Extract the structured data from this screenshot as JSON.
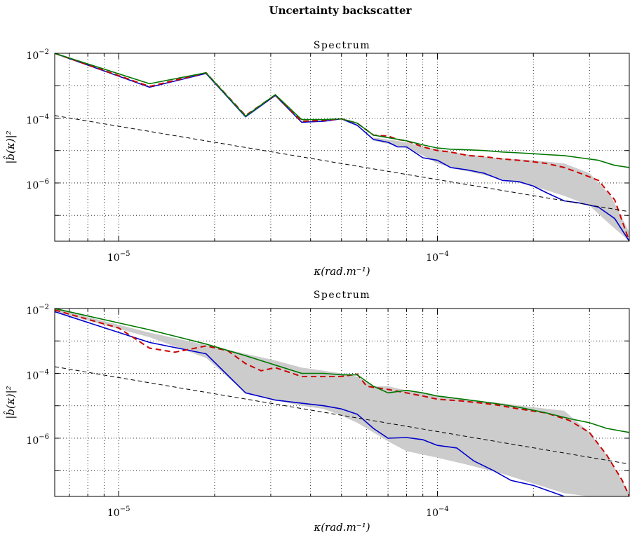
{
  "suptitle": "Uncertainty backscatter",
  "chart_data": [
    {
      "type": "line",
      "title": "Spectrum",
      "xlabel": "κ(rad.m⁻¹)",
      "ylabel": "|b̂(κ)|²",
      "xscale": "log",
      "yscale": "log",
      "xlim": [
        6.3e-06,
        0.0004
      ],
      "ylim": [
        1.6e-08,
        0.01
      ],
      "grid": true,
      "x_tick_labels": [
        {
          "base": "10",
          "exp": "−5"
        },
        {
          "base": "10",
          "exp": "−4"
        }
      ],
      "y_tick_labels": [
        {
          "base": "10",
          "exp": "−2"
        },
        {
          "base": "10",
          "exp": "−4"
        },
        {
          "base": "10",
          "exp": "−6"
        }
      ],
      "band": {
        "color": "#cccccc",
        "x": [
          6.3e-05,
          7e-05,
          8e-05,
          9e-05,
          0.0001,
          0.00012,
          0.00015,
          0.0002,
          0.00025,
          0.0003,
          0.00035,
          0.0004
        ],
        "upper": [
          2.5e-05,
          2.2e-05,
          1.8e-05,
          1.3e-05,
          1.1e-05,
          8e-06,
          6e-06,
          5e-06,
          4e-06,
          2e-06,
          4e-07,
          3e-08
        ],
        "lower": [
          2e-05,
          1.6e-05,
          1.2e-05,
          7e-06,
          4e-06,
          2.5e-06,
          1.5e-06,
          8e-07,
          4e-07,
          2e-07,
          5e-08,
          1.6e-08
        ]
      },
      "series": [
        {
          "color": "#0000cc",
          "style": "solid",
          "x": [
            6.3e-06,
            1.25e-05,
            1.88e-05,
            2.5e-05,
            3.1e-05,
            3.75e-05,
            4.4e-05,
            5e-05,
            5.6e-05,
            6.3e-05,
            7e-05,
            7.5e-05,
            8e-05,
            9e-05,
            0.0001,
            0.00011,
            0.000125,
            0.00014,
            0.00016,
            0.00018,
            0.0002,
            0.00022,
            0.00025,
            0.00028,
            0.00032,
            0.00036,
            0.0004
          ],
          "y": [
            0.01,
            0.0009,
            0.0024,
            0.00011,
            0.0005,
            7.5e-05,
            8e-05,
            9.5e-05,
            6e-05,
            2.2e-05,
            1.8e-05,
            1.3e-05,
            1.3e-05,
            6e-06,
            5e-06,
            3e-06,
            2.5e-06,
            2e-06,
            1.2e-06,
            1.1e-06,
            8e-07,
            5e-07,
            2.8e-07,
            2.4e-07,
            1.8e-07,
            8e-08,
            1.6e-08
          ]
        },
        {
          "color": "#cc0000",
          "style": "dashed",
          "x": [
            6.3e-06,
            1.25e-05,
            1.88e-05,
            2.5e-05,
            3.1e-05,
            3.75e-05,
            4.4e-05,
            5e-05,
            5.6e-05,
            6.3e-05,
            7e-05,
            7.5e-05,
            8e-05,
            9e-05,
            0.0001,
            0.00011,
            0.000125,
            0.00014,
            0.00016,
            0.00018,
            0.0002,
            0.00022,
            0.00025,
            0.00028,
            0.00032,
            0.00036,
            0.0004
          ],
          "y": [
            0.01,
            0.00095,
            0.0025,
            0.00012,
            0.00052,
            8e-05,
            8.5e-05,
            9.5e-05,
            7e-05,
            3e-05,
            2.8e-05,
            2.2e-05,
            2e-05,
            1.3e-05,
            1e-05,
            9e-06,
            7e-06,
            6.5e-06,
            5.5e-06,
            5e-06,
            4.5e-06,
            4e-06,
            3e-06,
            2e-06,
            1.2e-06,
            3e-07,
            1.6e-08
          ]
        },
        {
          "color": "#007700",
          "style": "solid",
          "x": [
            6.3e-06,
            1.25e-05,
            1.88e-05,
            2.5e-05,
            3.1e-05,
            3.75e-05,
            4.4e-05,
            5e-05,
            5.6e-05,
            6.3e-05,
            7e-05,
            8e-05,
            9e-05,
            0.0001,
            0.00011,
            0.000125,
            0.00014,
            0.00016,
            0.00018,
            0.0002,
            0.00022,
            0.00025,
            0.00028,
            0.00032,
            0.00036,
            0.0004
          ],
          "y": [
            0.01,
            0.00115,
            0.0025,
            0.000115,
            0.00053,
            9e-05,
            9e-05,
            9.5e-05,
            7e-05,
            3e-05,
            2.5e-05,
            2e-05,
            1.5e-05,
            1.2e-05,
            1.1e-05,
            1.05e-05,
            1e-05,
            9e-06,
            8.5e-06,
            8e-06,
            7.5e-06,
            7e-06,
            6e-06,
            5e-06,
            3.5e-06,
            3e-06
          ]
        },
        {
          "color": "#000000",
          "style": "dashed",
          "x": [
            6.3e-06,
            0.0004
          ],
          "y": [
            0.00012,
            1.3e-07
          ]
        }
      ]
    },
    {
      "type": "line",
      "title": "Spectrum",
      "xlabel": "κ(rad.m⁻¹)",
      "ylabel": "|b̂(κ)|²",
      "xscale": "log",
      "yscale": "log",
      "xlim": [
        6.3e-06,
        0.0004
      ],
      "ylim": [
        1.6e-08,
        0.01
      ],
      "grid": true,
      "x_tick_labels": [
        {
          "base": "10",
          "exp": "−5"
        },
        {
          "base": "10",
          "exp": "−4"
        }
      ],
      "y_tick_labels": [
        {
          "base": "10",
          "exp": "−2"
        },
        {
          "base": "10",
          "exp": "−4"
        },
        {
          "base": "10",
          "exp": "−6"
        }
      ],
      "band": {
        "color": "#cccccc",
        "x": [
          6.3e-06,
          1.25e-05,
          1.88e-05,
          2.5e-05,
          3.1e-05,
          3.75e-05,
          4.4e-05,
          5e-05,
          5.6e-05,
          6.3e-05,
          7e-05,
          8e-05,
          0.0001,
          0.000125,
          0.00016,
          0.0002,
          0.00025,
          0.0003,
          0.00035,
          0.0004
        ],
        "upper": [
          0.01,
          0.0018,
          0.00075,
          0.0004,
          0.00025,
          0.00015,
          0.00012,
          0.0001,
          8e-05,
          4e-05,
          4e-05,
          3e-05,
          2e-05,
          1.5e-05,
          1.2e-05,
          9e-06,
          7e-06,
          1.5e-06,
          2e-07,
          2e-08
        ],
        "lower": [
          0.008,
          0.0013,
          0.0003,
          2.5e-05,
          1.5e-05,
          1e-05,
          8e-06,
          5e-06,
          3e-06,
          1.5e-06,
          8e-07,
          4e-07,
          2.5e-07,
          1.5e-07,
          8e-08,
          4e-08,
          2e-08,
          1.6e-08,
          1.6e-08,
          1.6e-08
        ]
      },
      "series": [
        {
          "color": "#0000cc",
          "style": "solid",
          "x": [
            6.3e-06,
            1.25e-05,
            1.88e-05,
            2.5e-05,
            3.1e-05,
            3.75e-05,
            4.4e-05,
            5e-05,
            5.6e-05,
            6.3e-05,
            7e-05,
            8e-05,
            9e-05,
            0.0001,
            0.000115,
            0.00013,
            0.00015,
            0.00017,
            0.0002,
            0.00022,
            0.00025
          ],
          "y": [
            0.008,
            0.0009,
            0.0004,
            2.5e-05,
            1.5e-05,
            1.2e-05,
            1e-05,
            8e-06,
            5.5e-06,
            2e-06,
            1e-06,
            1.05e-06,
            9e-07,
            6e-07,
            5e-07,
            2e-07,
            1e-07,
            5e-08,
            3.5e-08,
            2.5e-08,
            1.6e-08
          ]
        },
        {
          "color": "#cc0000",
          "style": "dashed",
          "x": [
            6.3e-06,
            1e-05,
            1.25e-05,
            1.5e-05,
            1.88e-05,
            2.2e-05,
            2.5e-05,
            2.8e-05,
            3.1e-05,
            3.75e-05,
            4.4e-05,
            5e-05,
            5.6e-05,
            6e-05,
            7e-05,
            8e-05,
            9e-05,
            0.0001,
            0.00012,
            0.00015,
            0.00018,
            0.00022,
            0.00026,
            0.0003,
            0.00034,
            0.00038,
            0.0004
          ],
          "y": [
            0.009,
            0.0025,
            0.0006,
            0.00045,
            0.0007,
            0.0005,
            0.0002,
            0.00012,
            0.00015,
            8e-05,
            8e-05,
            8e-05,
            9.5e-05,
            4e-05,
            3.2e-05,
            2.5e-05,
            2e-05,
            1.6e-05,
            1.4e-05,
            1.1e-05,
            8e-06,
            6e-06,
            3.5e-06,
            1.5e-06,
            3e-07,
            5e-08,
            1.6e-08
          ]
        },
        {
          "color": "#007700",
          "style": "solid",
          "x": [
            6.3e-06,
            1.25e-05,
            1.88e-05,
            2.5e-05,
            3.1e-05,
            3.75e-05,
            4.4e-05,
            5e-05,
            5.6e-05,
            6.3e-05,
            7e-05,
            8e-05,
            9e-05,
            0.0001,
            0.00012,
            0.00015,
            0.00018,
            0.00022,
            0.00026,
            0.0003,
            0.00034,
            0.0004
          ],
          "y": [
            0.01,
            0.0022,
            0.0008,
            0.00035,
            0.00018,
            0.0001,
            0.0001,
            9e-05,
            9e-05,
            4e-05,
            2.5e-05,
            3e-05,
            2.5e-05,
            2e-05,
            1.6e-05,
            1.2e-05,
            9e-06,
            6e-06,
            4e-06,
            3e-06,
            2e-06,
            1.5e-06
          ]
        },
        {
          "color": "#000000",
          "style": "dashed",
          "x": [
            6.3e-06,
            0.0004
          ],
          "y": [
            0.00016,
            1.6e-07
          ]
        }
      ]
    }
  ]
}
